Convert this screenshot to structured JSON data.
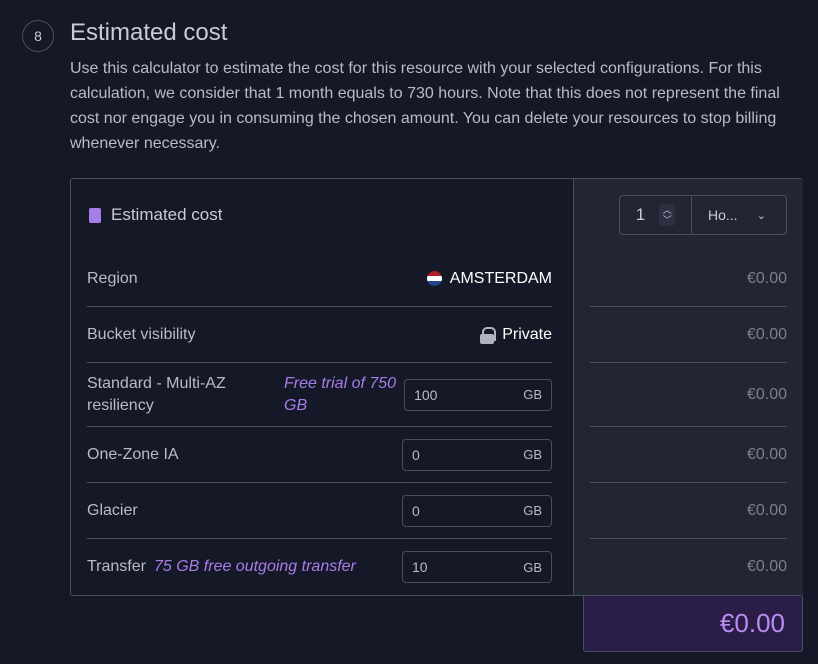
{
  "section": {
    "step": "8",
    "title": "Estimated cost",
    "description": "Use this calculator to estimate the cost for this resource with your selected configurations. For this calculation, we consider that 1 month equals to 730 hours. Note that this does not represent the final cost nor engage you in consuming the chosen amount. You can delete your resources to stop billing whenever necessary."
  },
  "card": {
    "title": "Estimated cost",
    "icon": "calculator-icon",
    "duration": {
      "value": "1",
      "unit": "Ho..."
    },
    "rows": [
      {
        "label": "Region",
        "value": "AMSTERDAM",
        "cost": "€0.00"
      },
      {
        "label": "Bucket visibility",
        "value": "Private",
        "cost": "€0.00"
      },
      {
        "label": "Standard - Multi-AZ resiliency",
        "promo": "Free trial of 750 GB",
        "input": "100",
        "unit": "GB",
        "cost": "€0.00"
      },
      {
        "label": "One-Zone IA",
        "input": "0",
        "unit": "GB",
        "cost": "€0.00"
      },
      {
        "label": "Glacier",
        "input": "0",
        "unit": "GB",
        "cost": "€0.00"
      },
      {
        "label": "Transfer",
        "promo": "75 GB free outgoing transfer",
        "input": "10",
        "unit": "GB",
        "cost": "€0.00"
      }
    ],
    "total": "€0.00"
  },
  "colors": {
    "accent": "#a77de8",
    "total_bg": "#2a1d47",
    "background": "#151826"
  }
}
